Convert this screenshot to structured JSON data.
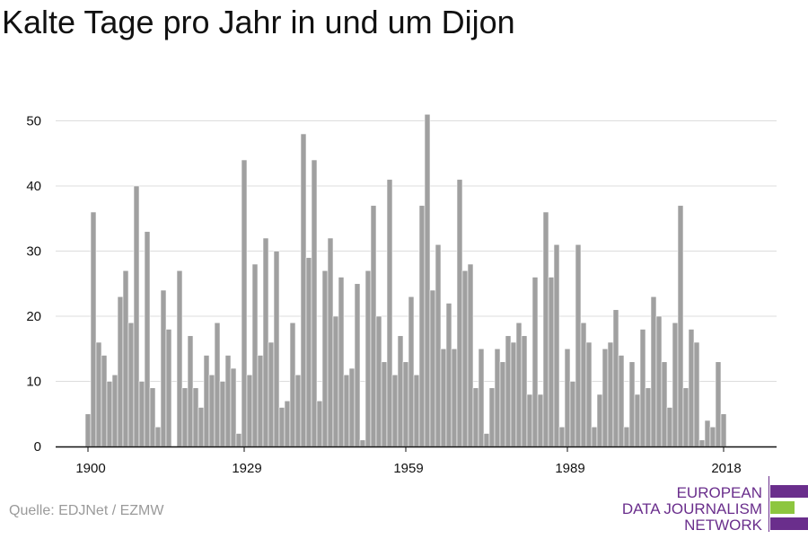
{
  "title": "Kalte Tage pro Jahr in und um Dijon",
  "source": "Quelle: EDJNet / EZMW",
  "logo": {
    "lines": [
      "EUROPEAN",
      "DATA JOURNALISM",
      "NETWORK"
    ],
    "bar_colors": [
      "#6a2e8c",
      "#8dc63f",
      "#6a2e8c"
    ]
  },
  "colors": {
    "bar": "#a0a0a0",
    "grid": "#dddddd",
    "axis": "#111111"
  },
  "chart_data": {
    "type": "bar",
    "title": "Kalte Tage pro Jahr in und um Dijon",
    "xlabel": "",
    "ylabel": "",
    "x_start": 1900,
    "x_end": 2018,
    "xticks": [
      1900,
      1929,
      1959,
      1989,
      2018
    ],
    "yticks": [
      0,
      10,
      20,
      30,
      40,
      50
    ],
    "ylim": [
      0,
      52
    ],
    "grid": true,
    "legend": "none",
    "values": [
      5,
      36,
      16,
      14,
      10,
      11,
      23,
      27,
      19,
      40,
      10,
      33,
      9,
      3,
      24,
      18,
      0,
      27,
      9,
      17,
      9,
      6,
      14,
      11,
      19,
      10,
      14,
      12,
      2,
      44,
      11,
      28,
      14,
      32,
      16,
      30,
      6,
      7,
      19,
      11,
      48,
      29,
      44,
      7,
      27,
      32,
      20,
      26,
      11,
      12,
      25,
      1,
      27,
      37,
      20,
      13,
      41,
      11,
      17,
      13,
      23,
      11,
      37,
      51,
      24,
      31,
      15,
      22,
      15,
      41,
      27,
      28,
      9,
      15,
      2,
      9,
      15,
      13,
      17,
      16,
      19,
      17,
      8,
      26,
      8,
      36,
      26,
      31,
      3,
      15,
      10,
      31,
      19,
      16,
      3,
      8,
      15,
      16,
      21,
      14,
      3,
      13,
      8,
      18,
      9,
      23,
      20,
      13,
      6,
      19,
      37,
      9,
      18,
      16,
      1,
      4,
      3,
      13,
      5
    ]
  }
}
